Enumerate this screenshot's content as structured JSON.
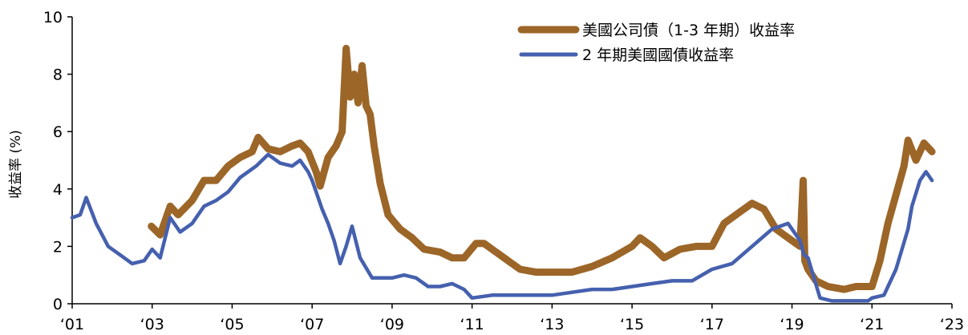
{
  "chart_data": {
    "type": "line",
    "title": "",
    "xlabel": "",
    "ylabel": "收益率 (%)",
    "ylim": [
      0,
      10
    ],
    "xlim": [
      2001,
      2023
    ],
    "y_ticks": [
      0,
      2,
      4,
      6,
      8,
      10
    ],
    "x_ticks": [
      {
        "value": 2001,
        "label": "‘01"
      },
      {
        "value": 2003,
        "label": "‘03"
      },
      {
        "value": 2005,
        "label": "‘05"
      },
      {
        "value": 2007,
        "label": "‘07"
      },
      {
        "value": 2009,
        "label": "‘09"
      },
      {
        "value": 2011,
        "label": "‘11"
      },
      {
        "value": 2013,
        "label": "‘13"
      },
      {
        "value": 2015,
        "label": "‘15"
      },
      {
        "value": 2017,
        "label": "‘17"
      },
      {
        "value": 2019,
        "label": "‘19"
      },
      {
        "value": 2021,
        "label": "‘21"
      },
      {
        "value": 2023,
        "label": "‘23"
      }
    ],
    "grid": false,
    "legend_position": "top-right",
    "series": [
      {
        "name": "美國公司債（1-3 年期）收益率",
        "color": "#9C6628",
        "x": [
          2002.98,
          2003.2,
          2003.45,
          2003.65,
          2004.0,
          2004.3,
          2004.6,
          2004.9,
          2005.2,
          2005.5,
          2005.65,
          2005.9,
          2006.2,
          2006.5,
          2006.7,
          2006.9,
          2007.1,
          2007.2,
          2007.4,
          2007.6,
          2007.75,
          2007.85,
          2007.95,
          2008.05,
          2008.15,
          2008.25,
          2008.35,
          2008.45,
          2008.55,
          2008.7,
          2008.9,
          2009.2,
          2009.5,
          2009.8,
          2010.2,
          2010.5,
          2010.8,
          2011.1,
          2011.3,
          2011.5,
          2011.8,
          2012.2,
          2012.6,
          2013.0,
          2013.5,
          2014.0,
          2014.5,
          2015.0,
          2015.2,
          2015.5,
          2015.8,
          2016.2,
          2016.6,
          2017.0,
          2017.3,
          2017.7,
          2018.0,
          2018.3,
          2018.6,
          2018.9,
          2019.2,
          2019.28,
          2019.32,
          2019.4,
          2019.6,
          2019.9,
          2020.3,
          2020.6,
          2021.0,
          2021.2,
          2021.4,
          2021.6,
          2021.8,
          2021.9,
          2022.1,
          2022.3,
          2022.5
        ],
        "values": [
          2.7,
          2.4,
          3.4,
          3.1,
          3.6,
          4.3,
          4.3,
          4.8,
          5.1,
          5.3,
          5.8,
          5.4,
          5.3,
          5.5,
          5.6,
          5.3,
          4.6,
          4.1,
          5.1,
          5.5,
          6.0,
          8.9,
          7.2,
          8.0,
          7.0,
          8.3,
          6.9,
          6.6,
          5.5,
          4.2,
          3.1,
          2.6,
          2.3,
          1.9,
          1.8,
          1.6,
          1.6,
          2.1,
          2.1,
          1.9,
          1.6,
          1.2,
          1.1,
          1.1,
          1.1,
          1.3,
          1.6,
          2.0,
          2.3,
          2.0,
          1.6,
          1.9,
          2.0,
          2.0,
          2.8,
          3.2,
          3.5,
          3.3,
          2.6,
          2.3,
          2.0,
          4.3,
          1.5,
          1.2,
          0.8,
          0.6,
          0.5,
          0.6,
          0.6,
          1.5,
          2.8,
          3.8,
          4.8,
          5.7,
          5.0,
          5.6,
          5.3
        ]
      },
      {
        "name": "2 年期美國國債收益率",
        "color": "#4560AE",
        "x": [
          2001.0,
          2001.2,
          2001.35,
          2001.6,
          2001.9,
          2002.2,
          2002.5,
          2002.8,
          2003.0,
          2003.2,
          2003.45,
          2003.7,
          2004.0,
          2004.3,
          2004.6,
          2004.9,
          2005.2,
          2005.6,
          2005.9,
          2006.2,
          2006.5,
          2006.7,
          2006.9,
          2007.0,
          2007.1,
          2007.25,
          2007.4,
          2007.55,
          2007.7,
          2007.85,
          2008.0,
          2008.2,
          2008.5,
          2008.8,
          2009.0,
          2009.3,
          2009.6,
          2009.9,
          2010.2,
          2010.5,
          2010.8,
          2011.0,
          2011.5,
          2012.0,
          2012.5,
          2013.0,
          2013.5,
          2014.0,
          2014.5,
          2015.0,
          2015.5,
          2016.0,
          2016.5,
          2017.0,
          2017.5,
          2018.0,
          2018.5,
          2018.9,
          2019.2,
          2019.3,
          2019.4,
          2019.7,
          2020.0,
          2020.5,
          2020.9,
          2021.0,
          2021.3,
          2021.6,
          2021.9,
          2022.0,
          2022.2,
          2022.35,
          2022.5
        ],
        "values": [
          3.0,
          3.1,
          3.7,
          2.8,
          2.0,
          1.7,
          1.4,
          1.5,
          1.9,
          1.6,
          3.0,
          2.5,
          2.8,
          3.4,
          3.6,
          3.9,
          4.4,
          4.8,
          5.2,
          4.9,
          4.8,
          5.0,
          4.6,
          4.3,
          3.9,
          3.3,
          2.8,
          2.2,
          1.4,
          2.0,
          2.7,
          1.6,
          0.9,
          0.9,
          0.9,
          1.0,
          0.9,
          0.6,
          0.6,
          0.7,
          0.5,
          0.2,
          0.3,
          0.3,
          0.3,
          0.3,
          0.4,
          0.5,
          0.5,
          0.6,
          0.7,
          0.8,
          0.8,
          1.2,
          1.4,
          2.0,
          2.6,
          2.8,
          2.2,
          1.7,
          1.6,
          0.2,
          0.1,
          0.1,
          0.1,
          0.2,
          0.3,
          1.2,
          2.6,
          3.4,
          4.3,
          4.6,
          4.3
        ]
      }
    ]
  }
}
